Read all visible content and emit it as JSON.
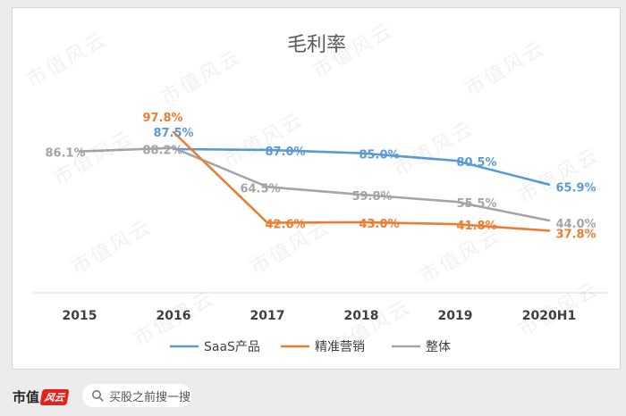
{
  "chart_data": {
    "type": "line",
    "title": "毛利率",
    "categories": [
      "2015",
      "2016",
      "2017",
      "2018",
      "2019",
      "2020H1"
    ],
    "series": [
      {
        "name": "SaaS产品",
        "color": "#5b9bd5",
        "values": [
          null,
          87.5,
          87.0,
          85.0,
          80.5,
          65.9
        ],
        "labels": [
          "",
          "87.5%",
          "87.0%",
          "85.0%",
          "80.5%",
          "65.9%"
        ]
      },
      {
        "name": "精准营销",
        "color": "#ed7d31",
        "values": [
          null,
          97.8,
          42.6,
          43.0,
          41.8,
          37.8
        ],
        "labels": [
          "",
          "97.8%",
          "42.6%",
          "43.0%",
          "41.8%",
          "37.8%"
        ]
      },
      {
        "name": "整体",
        "color": "#a5a5a5",
        "values": [
          86.1,
          88.2,
          64.5,
          59.8,
          55.5,
          44.0
        ],
        "labels": [
          "86.1%",
          "88.2%",
          "64.5%",
          "59.8%",
          "55.5%",
          "44.0%"
        ]
      }
    ],
    "legend_position": "bottom",
    "grid": false
  },
  "watermark": "市值风云",
  "footer": {
    "brand": "市值",
    "brand_stamp": "风云",
    "search_placeholder": "买股之前搜一搜"
  }
}
